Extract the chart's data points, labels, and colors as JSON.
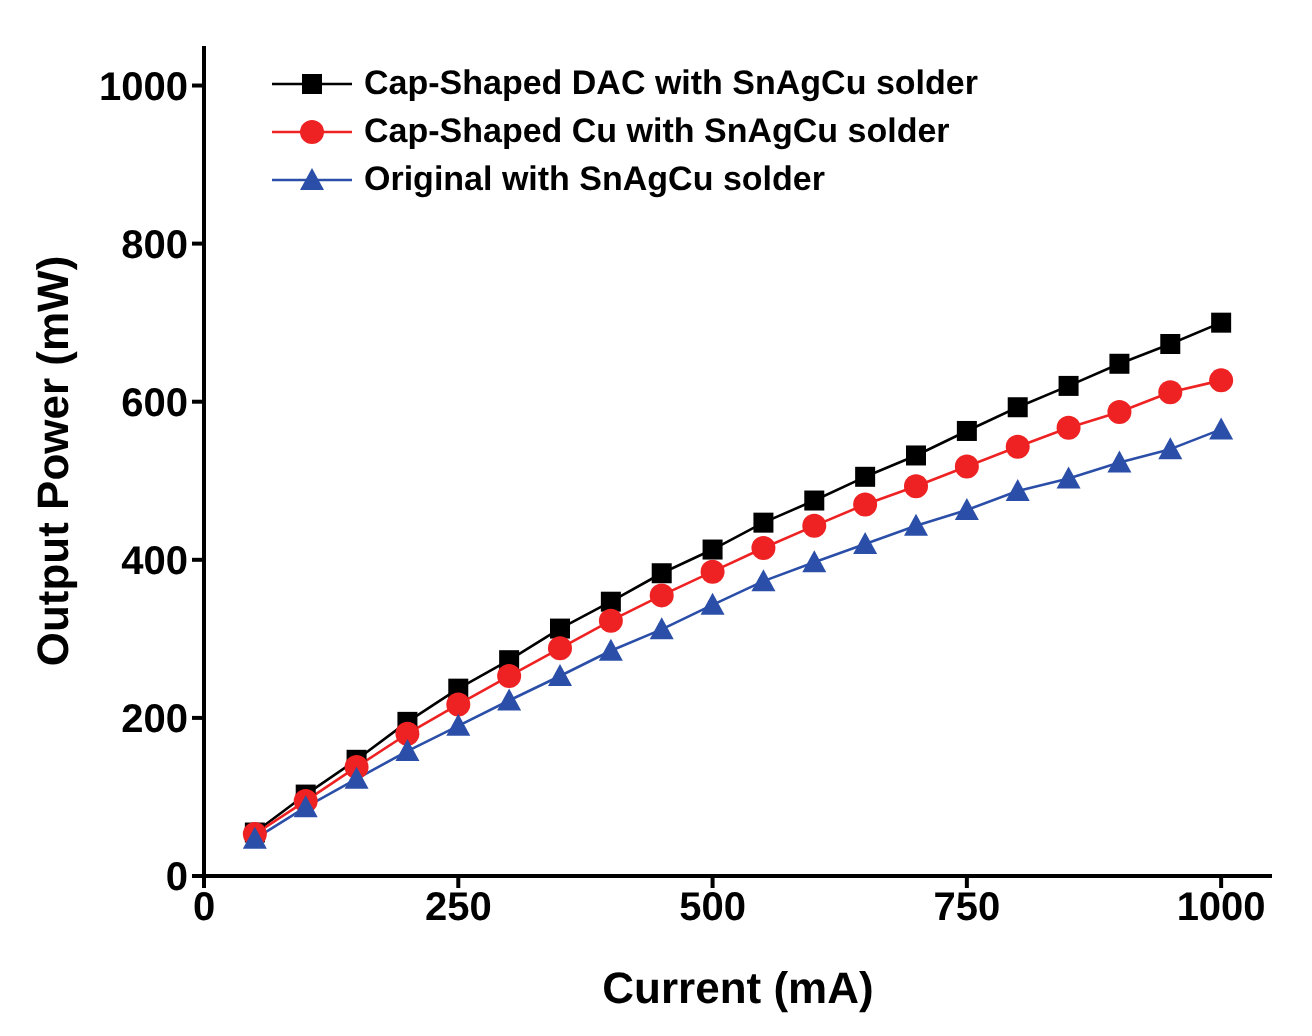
{
  "chart_data": {
    "type": "line",
    "xlabel": "Current (mA)",
    "ylabel": "Output Power (mW)",
    "x": [
      50,
      100,
      150,
      200,
      250,
      300,
      350,
      400,
      450,
      500,
      550,
      600,
      650,
      700,
      750,
      800,
      850,
      900,
      950,
      1000
    ],
    "series": [
      {
        "name": "Cap-Shaped DAC with SnAgCu solder",
        "color": "#000000",
        "marker": "square",
        "values": [
          55,
          103,
          147,
          195,
          237,
          273,
          313,
          347,
          383,
          413,
          447,
          475,
          505,
          532,
          563,
          593,
          620,
          648,
          673,
          700
        ]
      },
      {
        "name": "Cap-Shaped Cu with SnAgCu solder",
        "color": "#ee2222",
        "marker": "circle",
        "values": [
          53,
          95,
          138,
          180,
          217,
          253,
          288,
          323,
          355,
          385,
          415,
          443,
          470,
          493,
          518,
          543,
          567,
          587,
          612,
          627
        ]
      },
      {
        "name": "Original with SnAgCu solder",
        "color": "#2b4fa8",
        "marker": "triangle",
        "values": [
          47,
          87,
          123,
          158,
          190,
          222,
          253,
          285,
          312,
          343,
          373,
          397,
          420,
          443,
          463,
          487,
          503,
          523,
          540,
          565
        ]
      }
    ],
    "xlim": [
      0,
      1050
    ],
    "xticks": [
      0,
      250,
      500,
      750,
      1000
    ],
    "ylim": [
      0,
      1050
    ],
    "yticks": [
      0,
      200,
      400,
      600,
      800,
      1000
    ],
    "grid": false,
    "legend": "top left",
    "line_style": "solid"
  }
}
